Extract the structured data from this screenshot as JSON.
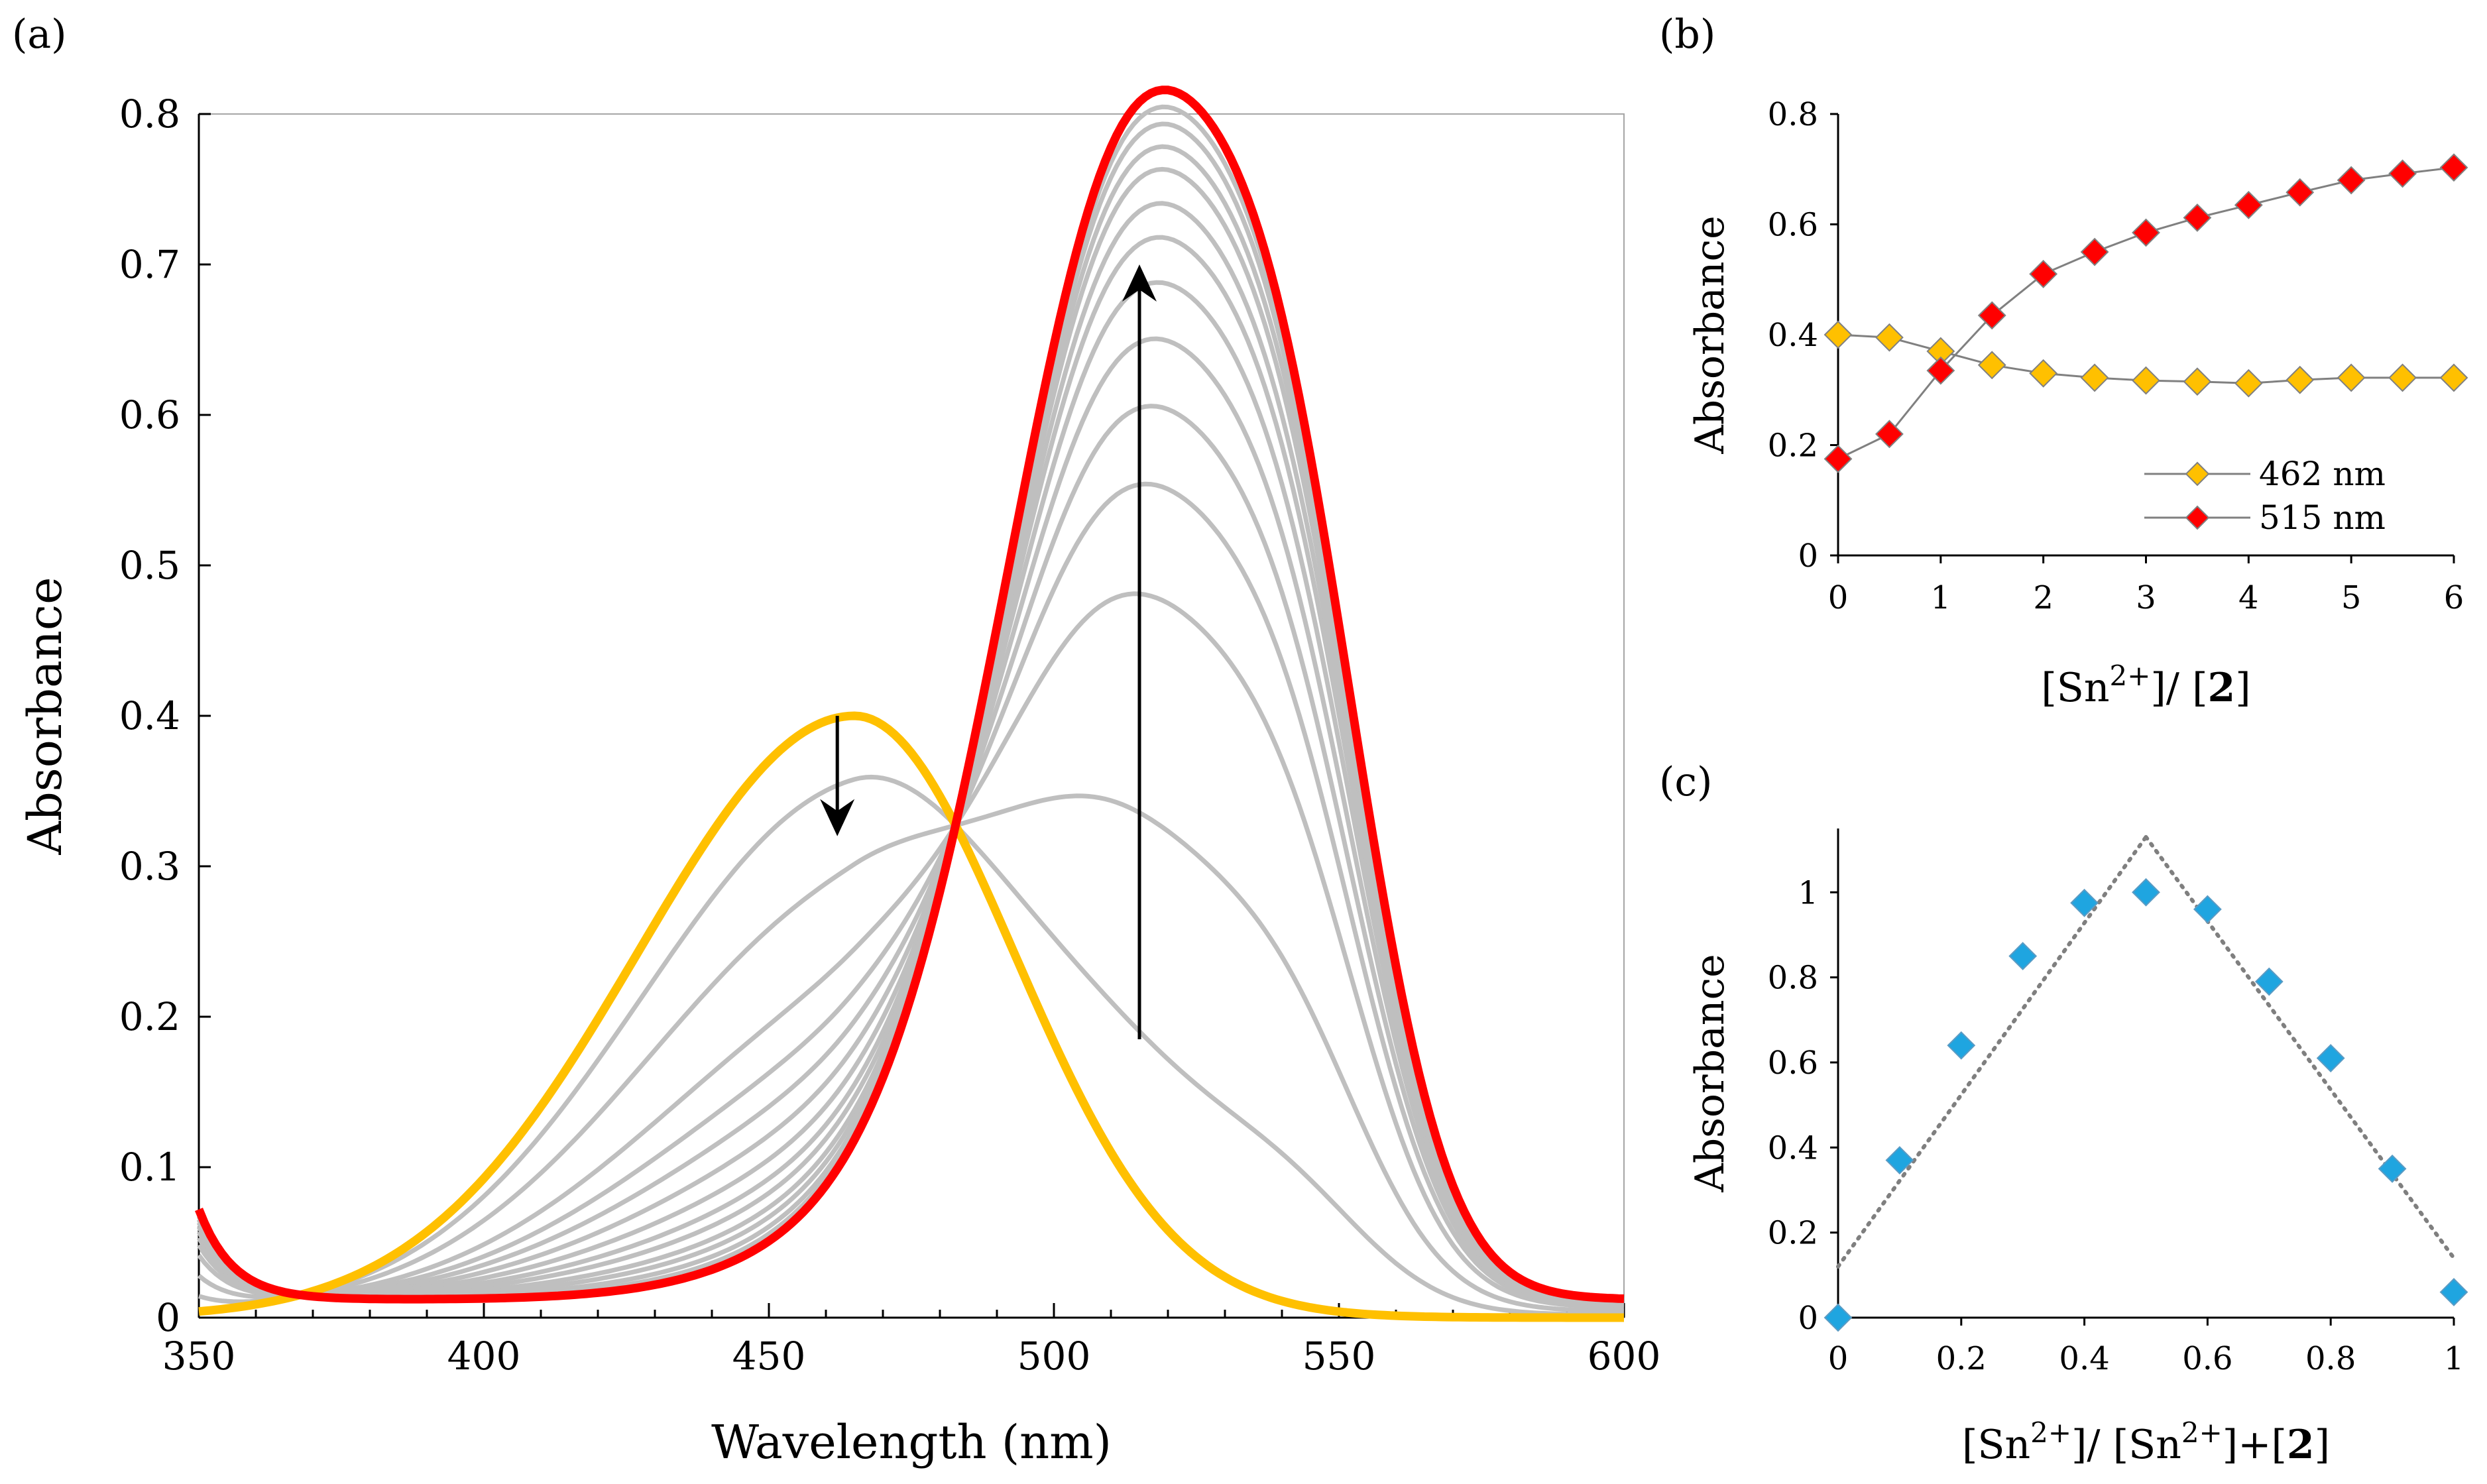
{
  "chart_data": [
    {
      "panel": "(a)",
      "type": "line",
      "xlabel": "Wavelength (nm)",
      "ylabel": "Absorbance",
      "xlim": [
        350,
        600
      ],
      "ylim": [
        0,
        0.8
      ],
      "xticks": [
        350,
        400,
        450,
        500,
        550,
        600
      ],
      "yticks": [
        0,
        0.1,
        0.2,
        0.3,
        0.4,
        0.5,
        0.6,
        0.7,
        0.8
      ],
      "xtick_labels": [
        "350",
        "400",
        "450",
        "500",
        "550",
        "600"
      ],
      "ytick_labels": [
        "0",
        "0.1",
        "0.2",
        "0.3",
        "0.4",
        "0.5",
        "0.6",
        "0.7",
        "0.8"
      ],
      "colors": {
        "initial": "#FFC000",
        "final": "#FF0000",
        "intermediate": "#BFBFBF"
      },
      "model": {
        "peaks": [
          {
            "center": 465,
            "a_initial": 0.4,
            "a_final": 0.0,
            "sigma_left": 38,
            "sigma_right": 28
          },
          {
            "center": 515,
            "a_initial": 0.0,
            "a_final": 0.7,
            "sigma_left": 22,
            "sigma_right": 22
          },
          {
            "center": 543,
            "a_initial": 0.0,
            "a_final": 0.27,
            "sigma_left": 14,
            "sigma_right": 14
          },
          {
            "center": 492,
            "a_initial": 0.0,
            "a_final": 0.08,
            "sigma_left": 30,
            "sigma_right": 30
          }
        ],
        "baseline_initial": 0.0,
        "baseline_final": 0.012,
        "tail_final": {
          "amplitude": 0.06,
          "decay": 6
        },
        "intermediate_fractions": [
          0.15,
          0.35,
          0.55,
          0.65,
          0.72,
          0.78,
          0.83,
          0.87,
          0.9,
          0.93,
          0.95,
          0.97,
          0.985
        ]
      },
      "arrows": [
        {
          "x": 462,
          "from": 0.4,
          "to": 0.32,
          "direction": "down"
        },
        {
          "x": 515,
          "from": 0.185,
          "to": 0.7,
          "direction": "up"
        }
      ]
    },
    {
      "panel": "(b)",
      "type": "line",
      "xlabel_parts": [
        "[Sn",
        "2+",
        "]/ [",
        "2",
        "]"
      ],
      "ylabel": "Absorbance",
      "xlim": [
        0,
        6
      ],
      "ylim": [
        0,
        0.8
      ],
      "xticks": [
        0,
        1,
        2,
        3,
        4,
        5,
        6
      ],
      "yticks": [
        0,
        0.2,
        0.4,
        0.6,
        0.8
      ],
      "xtick_labels": [
        "0",
        "1",
        "2",
        "3",
        "4",
        "5",
        "6"
      ],
      "ytick_labels": [
        "0",
        "0.2",
        "0.4",
        "0.6",
        "0.8"
      ],
      "x": [
        0,
        0.5,
        1,
        1.5,
        2,
        2.5,
        3,
        3.5,
        4,
        4.5,
        5,
        5.5,
        6
      ],
      "series": [
        {
          "name": "462 nm",
          "color": "#FFC000",
          "values": [
            0.4,
            0.395,
            0.37,
            0.345,
            0.33,
            0.322,
            0.317,
            0.315,
            0.312,
            0.318,
            0.322,
            0.322,
            0.322
          ]
        },
        {
          "name": "515 nm",
          "color": "#FF0000",
          "values": [
            0.175,
            0.22,
            0.335,
            0.435,
            0.51,
            0.55,
            0.585,
            0.612,
            0.635,
            0.658,
            0.68,
            0.692,
            0.703
          ]
        }
      ],
      "legend_position": "bottom-right"
    },
    {
      "panel": "(c)",
      "type": "scatter",
      "xlabel_parts": [
        "[Sn",
        "2+",
        "]/ [Sn",
        "2+",
        "]+[",
        "2",
        "]"
      ],
      "ylabel": "Absorbance",
      "xlim": [
        0,
        1
      ],
      "ylim": [
        0,
        1.15
      ],
      "xticks": [
        0,
        0.2,
        0.4,
        0.6,
        0.8,
        1
      ],
      "yticks": [
        0,
        0.2,
        0.4,
        0.6,
        0.8,
        1
      ],
      "xtick_labels": [
        "0",
        "0.2",
        "0.4",
        "0.6",
        "0.8",
        "1"
      ],
      "ytick_labels": [
        "0",
        "0.2",
        "0.4",
        "0.6",
        "0.8",
        "1"
      ],
      "x": [
        0,
        0.1,
        0.2,
        0.3,
        0.4,
        0.5,
        0.6,
        0.7,
        0.8,
        0.9,
        1
      ],
      "values": [
        0.0,
        0.37,
        0.64,
        0.85,
        0.975,
        1.0,
        0.96,
        0.79,
        0.61,
        0.35,
        0.06
      ],
      "marker_color": "#1FA5E0",
      "trendlines": [
        {
          "x": [
            0,
            0.5
          ],
          "y": [
            0.12,
            1.13
          ]
        },
        {
          "x": [
            0.5,
            1
          ],
          "y": [
            1.13,
            0.14
          ]
        }
      ]
    }
  ]
}
